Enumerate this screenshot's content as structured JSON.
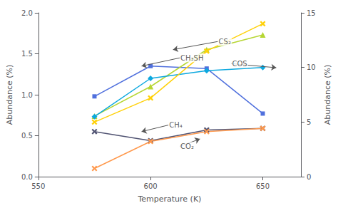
{
  "chart_data": {
    "type": "line",
    "x": [
      575,
      600,
      625,
      650
    ],
    "xlabel": "Temperature (K)",
    "ylabel": "Abundance (%)",
    "y2label": "Abundance (%)",
    "xlim": [
      550,
      667
    ],
    "xticks": [
      550,
      600,
      650
    ],
    "ylim": [
      0,
      2
    ],
    "yticks": [
      {
        "value": 0,
        "label": "0.0"
      },
      0.5,
      {
        "value": 1,
        "label": "1.0"
      },
      1.5,
      {
        "value": 2,
        "label": "2.0"
      }
    ],
    "y2lim": [
      0,
      15
    ],
    "y2ticks": [
      0,
      5,
      10,
      15
    ],
    "grid": false,
    "series": [
      {
        "marker": "square",
        "values": [
          0.98,
          1.35,
          1.32,
          0.77
        ]
      },
      {
        "marker": "triangle",
        "values": [
          0.74,
          1.1,
          1.55,
          1.73
        ]
      },
      {
        "marker": "x",
        "values": [
          0.55,
          0.44,
          0.57,
          0.59
        ]
      },
      {
        "marker": "x",
        "values": [
          0.1,
          0.43,
          0.55,
          0.59
        ]
      },
      {
        "marker": "diamond",
        "values": [
          5.5,
          9.0,
          9.7,
          10.0
        ],
        "axis": "y2"
      },
      {
        "marker": "x",
        "values": [
          5.0,
          7.2,
          11.5,
          14.0
        ],
        "axis": "y2"
      }
    ],
    "annotations": [
      {
        "text": "CS₂",
        "x": 630,
        "y": 1.65,
        "arrow_x": 610,
        "arrow_y": 1.55
      },
      {
        "text": "CH₃SH",
        "x": 613,
        "y": 1.45,
        "arrow_x": 596,
        "arrow_y": 1.35
      },
      {
        "text": "COS",
        "x": 636,
        "y": 1.38,
        "arrow_x": 656,
        "arrow_y": 1.33
      },
      {
        "text": "CH₄",
        "x": 608,
        "y": 0.63,
        "arrow_x": 596,
        "arrow_y": 0.55
      },
      {
        "text": "CO₂",
        "x": 613,
        "y": 0.37,
        "arrow_x": 622,
        "arrow_y": 0.46
      }
    ]
  }
}
